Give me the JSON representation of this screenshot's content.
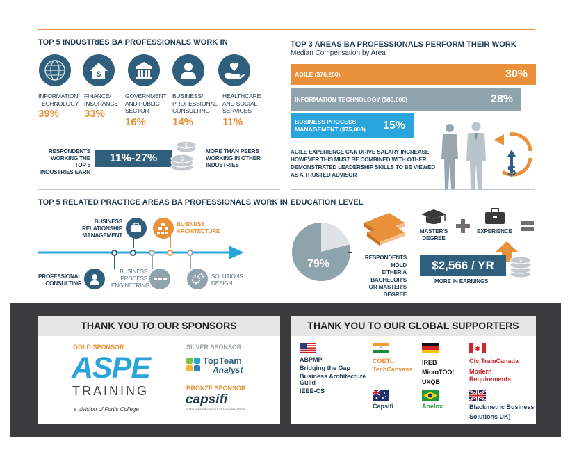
{
  "colors": {
    "orange": "#e8913a",
    "navy": "#2f5f7c",
    "gray": "#8fa3ad",
    "blue": "#2aa5dc",
    "dark_panel": "#3b3b3d"
  },
  "industries": {
    "title": "TOP 5 INDUSTRIES BA PROFESSIONALS WORK IN",
    "items": [
      {
        "icon": "globe-icon",
        "label": [
          "INFORMATION",
          "TECHNOLOGY"
        ],
        "percent": "39%"
      },
      {
        "icon": "house-dollar-icon",
        "label": [
          "FINANCE/",
          "INSURANCE"
        ],
        "percent": "33%"
      },
      {
        "icon": "government-building-icon",
        "label": [
          "GOVERNMENT",
          "AND PUBLIC",
          "SECTOR"
        ],
        "percent": "16%"
      },
      {
        "icon": "person-icon",
        "label": [
          "BUSINESS/",
          "PROFESSIONAL",
          "CONSULTING"
        ],
        "percent": "14%"
      },
      {
        "icon": "hand-heart-icon",
        "label": [
          "HEALTHCARE",
          "AND SOCIAL",
          "SERVICES"
        ],
        "percent": "11%"
      }
    ],
    "respondents_text": [
      "RESPONDENTS",
      "WORKING THE TOP 5",
      "INDUSTRIES EARN"
    ],
    "earn_range": "11%-27%",
    "more_text": [
      "MORE THAN PEERS",
      "WORKING IN OTHER",
      "INDUSTRIES"
    ]
  },
  "areas": {
    "title": "TOP 3 AREAS BA PROFESSIONALS PERFORM THEIR WORK",
    "subtitle": "Median Compensation by Area",
    "bars": [
      {
        "label": "AGILE ($76,200)",
        "percent": "30%"
      },
      {
        "label": "INFORMATION TECHNOLOGY ($80,000)",
        "percent": "28%"
      },
      {
        "label": [
          "BUSINESS PROCESS",
          "MANAGEMENT ($75,000)"
        ],
        "percent": "15%"
      }
    ],
    "note": [
      "AGILE EXPERIENCE CAN DRIVE SALARY INCREASE",
      "HOWEVER THIS MUST BE COMBINED WITH OTHER",
      "DEMONSTRATED LEADERSHIP SKILLS TO BE VIEWED",
      "AS A TRUSTED ADVISOR"
    ]
  },
  "practice": {
    "title": "TOP 5 RELATED PRACTICE AREAS BA PROFESSIONALS WORK IN",
    "items": [
      {
        "icon": "briefcase-icon",
        "label": [
          "BUSINESS",
          "RELATIONSHIP",
          "MANAGEMENT"
        ]
      },
      {
        "icon": "hierarchy-icon",
        "label": [
          "BUSINESS",
          "ARCHITECTURE"
        ]
      },
      {
        "icon": "person-icon",
        "label": [
          "PROFESSIONAL",
          "CONSULTING"
        ]
      },
      {
        "icon": "process-icon",
        "label": [
          "BUSINESS",
          "PROCESS",
          "ENGINEERING"
        ]
      },
      {
        "icon": "gears-icon",
        "label": [
          "SOLUTIONS",
          "DESIGN"
        ]
      }
    ]
  },
  "education": {
    "title": "EDUCATION LEVEL",
    "percent": 79,
    "percent_label": "79%",
    "respondents_text": [
      "RESPONDENTS HOLD",
      "EITHER A BACHELOR'S",
      "OR MASTER'S DEGREE"
    ],
    "masters_label": [
      "MASTER'S",
      "DEGREE"
    ],
    "experience_label": "EXPERIENCE",
    "earnings": "$2,566 / YR",
    "earnings_caption": "MORE IN EARNINGS"
  },
  "sponsors": {
    "title": "THANK YOU TO OUR SPONSORS",
    "gold_label": "GOLD SPONSOR",
    "gold_name_1": "ASPE",
    "gold_name_2": "TRAINING",
    "gold_tagline": "a division of Fortis College",
    "silver_label": "SILVER SPONSOR",
    "silver_name_1": "TopTeam",
    "silver_name_2": "Analyst",
    "bronze_label": "BRONZE SPONSOR",
    "bronze_name": "capsifi",
    "bronze_tagline": "INTELLIGENT BUSINESS TRANSFORMATION"
  },
  "supporters": {
    "title": "THANK YOU TO OUR GLOBAL SUPPORTERS",
    "usa": [
      "ABPMP",
      "Bridging the Gap",
      "Business Architecture",
      "Guild",
      "IEEE-CS"
    ],
    "india": [
      "COETL",
      "TechCanvass"
    ],
    "germany": [
      "IREB",
      "MicroTOOL",
      "UXQB"
    ],
    "canada": [
      "Ctc TrainCanada",
      "Modern",
      "Requirements"
    ],
    "australia": [
      "Capsifi"
    ],
    "brazil": [
      "Anelox"
    ],
    "uk": [
      "Blackmetric Business",
      "Solutions UK)"
    ]
  }
}
